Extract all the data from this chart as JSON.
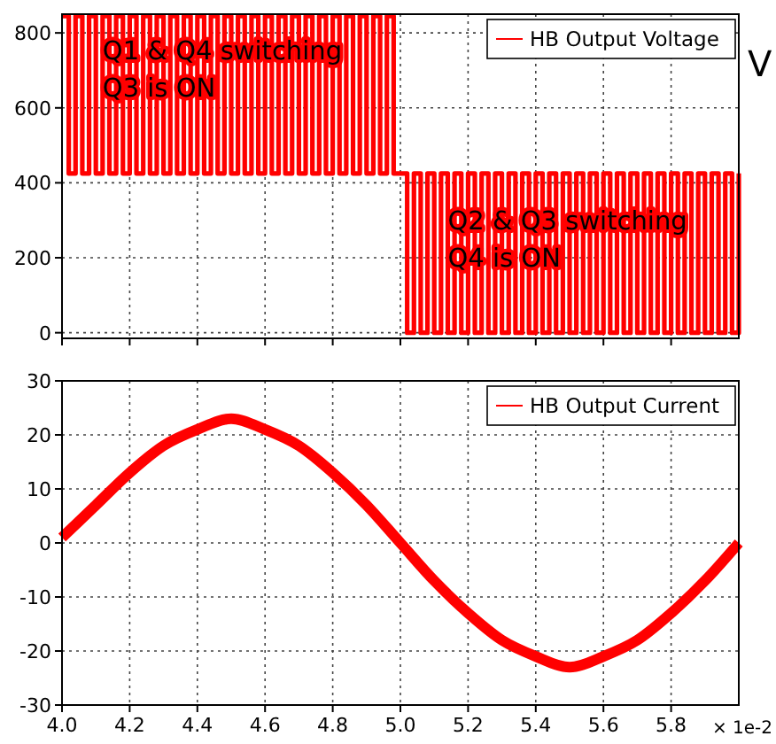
{
  "chart_data": [
    {
      "type": "step",
      "tick_labels": "y",
      "xlim": [
        4,
        6
      ],
      "xticks": [
        {
          "value": 4,
          "label": null
        },
        {
          "value": 4.2,
          "label": null
        },
        {
          "value": 4.4,
          "label": null
        },
        {
          "value": 4.6,
          "label": null
        },
        {
          "value": 4.8,
          "label": null
        },
        {
          "value": 5,
          "label": null
        },
        {
          "value": 5.2,
          "label": null
        },
        {
          "value": 5.4,
          "label": null
        },
        {
          "value": 5.6,
          "label": null
        },
        {
          "value": 5.8,
          "label": null
        }
      ],
      "ylim": [
        -15,
        850
      ],
      "yticks": [
        0,
        200,
        400,
        600,
        800
      ],
      "grid": true,
      "legend": "top right",
      "series": [
        {
          "name": "HB Output Voltage",
          "color": "#ff0000",
          "x": [
            4.0,
            4.02,
            4.04,
            4.06,
            4.08,
            4.1,
            4.12,
            4.14,
            4.16,
            4.18,
            4.2,
            4.22,
            4.24,
            4.26,
            4.28,
            4.3,
            4.32,
            4.34,
            4.36,
            4.38,
            4.4,
            4.42,
            4.44,
            4.46,
            4.48,
            4.5,
            4.52,
            4.54,
            4.56,
            4.58,
            4.6,
            4.62,
            4.64,
            4.66,
            4.68,
            4.7,
            4.72,
            4.74,
            4.76,
            4.78,
            4.8,
            4.82,
            4.84,
            4.86,
            4.88,
            4.9,
            4.92,
            4.94,
            4.96,
            4.98,
            5.0,
            5.02,
            5.04,
            5.06,
            5.08,
            5.1,
            5.12,
            5.14,
            5.16,
            5.18,
            5.2,
            5.22,
            5.24,
            5.26,
            5.28,
            5.3,
            5.32,
            5.34,
            5.36,
            5.38,
            5.4,
            5.42,
            5.44,
            5.46,
            5.48,
            5.5,
            5.52,
            5.54,
            5.56,
            5.58,
            5.6,
            5.62,
            5.64,
            5.66,
            5.68,
            5.7,
            5.72,
            5.74,
            5.76,
            5.78,
            5.8,
            5.82,
            5.84,
            5.86,
            5.88,
            5.9,
            5.92,
            5.94,
            5.96,
            5.98,
            6.0
          ],
          "values": [
            845,
            425,
            845,
            425,
            845,
            425,
            845,
            425,
            845,
            425,
            845,
            425,
            845,
            425,
            845,
            425,
            845,
            425,
            845,
            425,
            845,
            425,
            845,
            425,
            845,
            425,
            845,
            425,
            845,
            425,
            845,
            425,
            845,
            425,
            845,
            425,
            845,
            425,
            845,
            425,
            845,
            425,
            845,
            425,
            845,
            425,
            845,
            425,
            845,
            425,
            425,
            0,
            425,
            0,
            425,
            0,
            425,
            0,
            425,
            0,
            425,
            0,
            425,
            0,
            425,
            0,
            425,
            0,
            425,
            0,
            425,
            0,
            425,
            0,
            425,
            0,
            425,
            0,
            425,
            0,
            425,
            0,
            425,
            0,
            425,
            0,
            425,
            0,
            425,
            0,
            425,
            0,
            425,
            0,
            425,
            0,
            425,
            0,
            425,
            0,
            425
          ]
        }
      ],
      "annotations": [
        {
          "text": "Q1 & Q4 switching\nQ3 is ON",
          "x": 4.12,
          "y": 730
        },
        {
          "text": "Q2 & Q3 switching\nQ4 is ON",
          "x": 5.14,
          "y": 275
        },
        "V"
      ]
    },
    {
      "type": "line",
      "xlim": [
        4,
        6
      ],
      "xticks": [
        {
          "value": 4,
          "label": "4.0"
        },
        {
          "value": 4.2,
          "label": "4.2"
        },
        {
          "value": 4.4,
          "label": "4.4"
        },
        {
          "value": 4.6,
          "label": "4.6"
        },
        {
          "value": 4.8,
          "label": "4.8"
        },
        {
          "value": 5,
          "label": "5.0"
        },
        {
          "value": 5.2,
          "label": "5.2"
        },
        {
          "value": 5.4,
          "label": "5.4"
        },
        {
          "value": 5.6,
          "label": "5.6"
        },
        {
          "value": 5.8,
          "label": "5.8"
        }
      ],
      "ylim": [
        -30,
        30
      ],
      "yticks": [
        -30,
        -20,
        -10,
        0,
        10,
        20,
        30
      ],
      "grid": true,
      "legend": "top right",
      "series": [
        {
          "name": "HB Output Current",
          "color": "#ff0000",
          "x": [
            4.0,
            4.1,
            4.2,
            4.3,
            4.4,
            4.5,
            4.6,
            4.7,
            4.8,
            4.9,
            5.0,
            5.1,
            5.2,
            5.3,
            5.4,
            5.5,
            5.6,
            5.7,
            5.8,
            5.9,
            6.0
          ],
          "values": [
            1,
            7,
            13,
            18,
            21,
            23,
            21,
            18,
            13,
            7,
            0,
            -7,
            -13,
            -18,
            -21,
            -23,
            -21,
            -18,
            -13,
            -7,
            0
          ]
        }
      ],
      "annotations": [
        "× 1e-2"
      ]
    }
  ]
}
